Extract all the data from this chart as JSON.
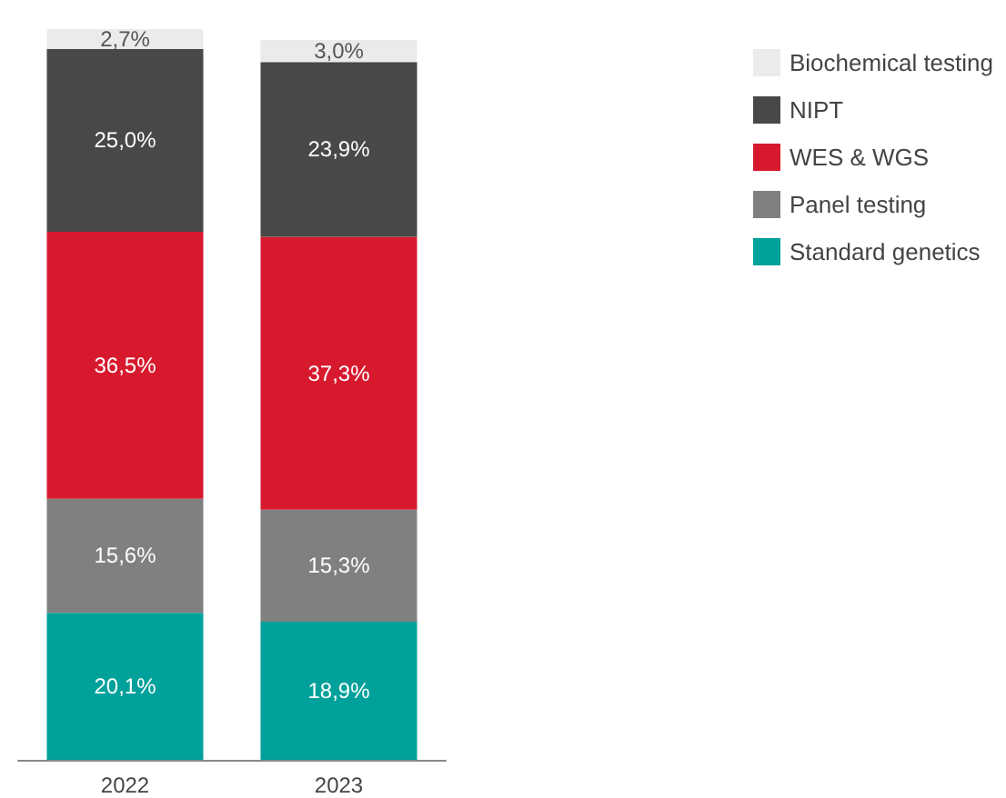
{
  "chart_data": {
    "type": "bar",
    "stacked": true,
    "categories": [
      "2022",
      "2023"
    ],
    "series": [
      {
        "name": "Standard genetics",
        "color": "#00a19a",
        "values": [
          20.1,
          18.9
        ],
        "value_labels": [
          "20,1%",
          "18,9%"
        ]
      },
      {
        "name": "Panel testing",
        "color": "#808080",
        "values": [
          15.6,
          15.3
        ],
        "value_labels": [
          "15,6%",
          "15,3%"
        ]
      },
      {
        "name": "WES & WGS",
        "color": "#d7192e",
        "values": [
          36.5,
          37.3
        ],
        "value_labels": [
          "36,5%",
          "37,3%"
        ]
      },
      {
        "name": "NIPT",
        "color": "#484848",
        "values": [
          25.0,
          23.9
        ],
        "value_labels": [
          "25,0%",
          "23,9%"
        ]
      },
      {
        "name": "Biochemical testing",
        "color": "#ebebeb",
        "values": [
          2.7,
          3.0
        ],
        "value_labels": [
          "2,7%",
          "3,0%"
        ]
      }
    ],
    "legend": "top right"
  }
}
